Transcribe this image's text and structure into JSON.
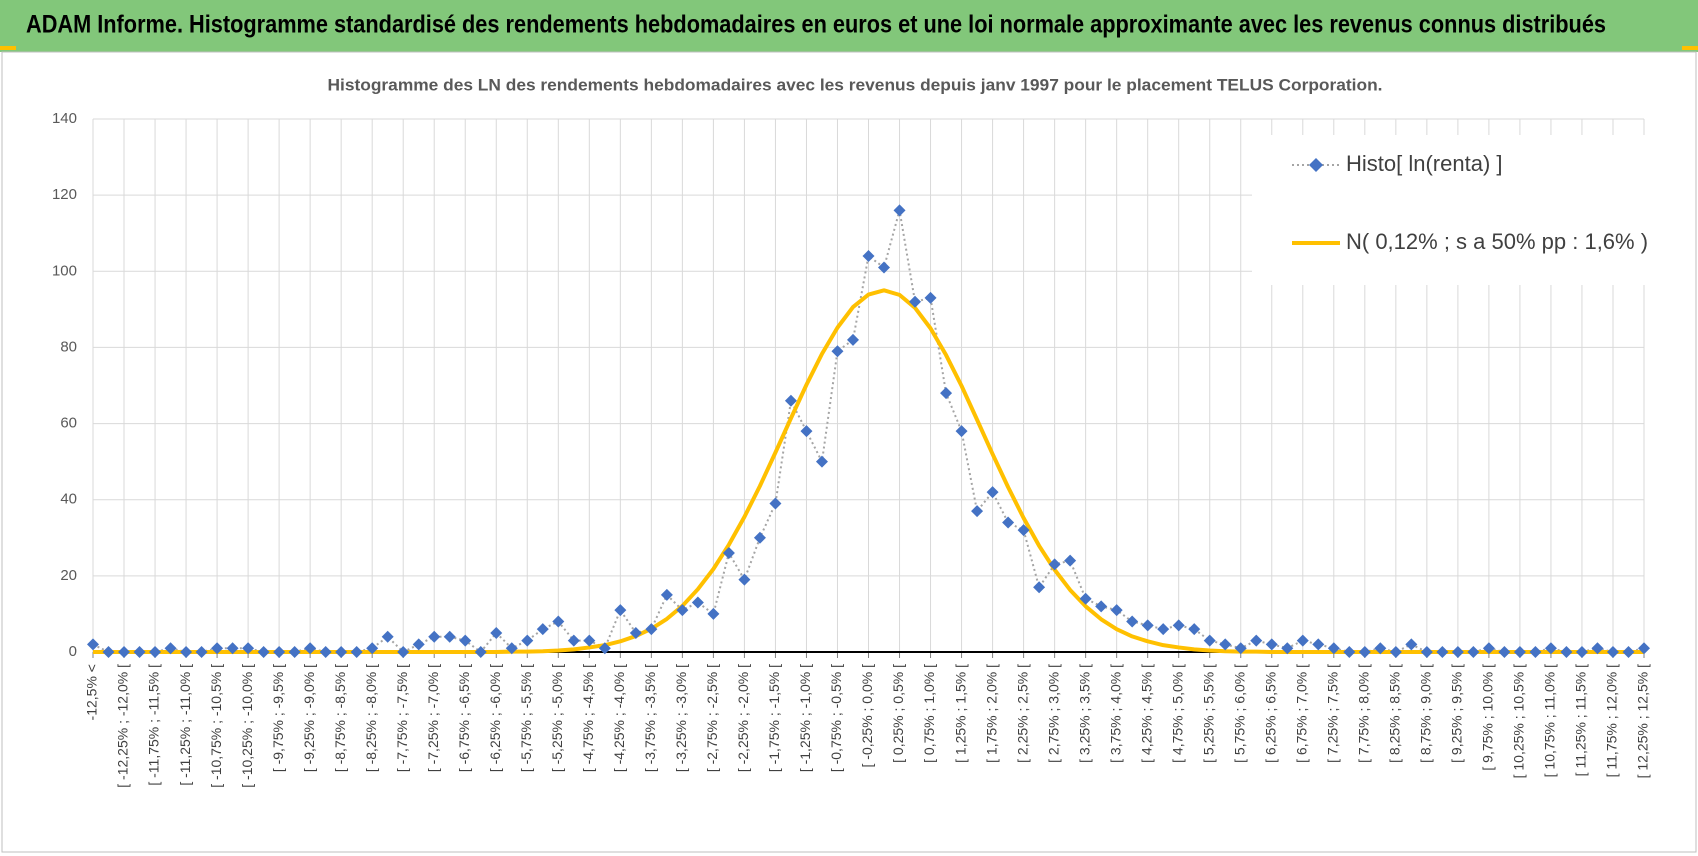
{
  "header": {
    "title": "ADAM Informe. Histogramme standardisé des rendements hebdomadaires en euros et une loi normale approximante avec les revenus connus distribués"
  },
  "chart_data": {
    "type": "line",
    "title": "Histogramme des LN des rendements hebdomadaires avec les revenus depuis janv 1997 pour le placement TELUS Corporation.",
    "categories": [
      "-12,5% <",
      null,
      "[ -12,25% ; -12,0% [",
      null,
      "[ -11,75% ; -11,5% [",
      null,
      "[ -11,25% ; -11,0% [",
      null,
      "[ -10,75% ; -10,5% [",
      null,
      "[ -10,25% ; -10,0% [",
      null,
      "[ -9,75% ; -9,5% [",
      null,
      "[ -9,25% ; -9,0% [",
      null,
      "[ -8,75% ; -8,5% [",
      null,
      "[ -8,25% ; -8,0% [",
      null,
      "[ -7,75% ; -7,5% [",
      null,
      "[ -7,25% ; -7,0% [",
      null,
      "[ -6,75% ; -6,5% [",
      null,
      "[ -6,25% ; -6,0% [",
      null,
      "[ -5,75% ; -5,5% [",
      null,
      "[ -5,25% ; -5,0% [",
      null,
      "[ -4,75% ; -4,5% [",
      null,
      "[ -4,25% ; -4,0% [",
      null,
      "[ -3,75% ; -3,5% [",
      null,
      "[ -3,25% ; -3,0% [",
      null,
      "[ -2,75% ; -2,5% [",
      null,
      "[ -2,25% ; -2,0% [",
      null,
      "[ -1,75% ; -1,5% [",
      null,
      "[ -1,25% ; -1,0% [",
      null,
      "[ -0,75% ; -0,5% [",
      null,
      "[ -0,25% ; 0,0% [",
      null,
      "[ 0,25% ; 0,5% [",
      null,
      "[ 0,75% ; 1,0% [",
      null,
      "[ 1,25% ; 1,5% [",
      null,
      "[ 1,75% ; 2,0% [",
      null,
      "[ 2,25% ; 2,5% [",
      null,
      "[ 2,75% ; 3,0% [",
      null,
      "[ 3,25% ; 3,5% [",
      null,
      "[ 3,75% ; 4,0% [",
      null,
      "[ 4,25% ; 4,5% [",
      null,
      "[ 4,75% ; 5,0% [",
      null,
      "[ 5,25% ; 5,5% [",
      null,
      "[ 5,75% ; 6,0% [",
      null,
      "[ 6,25% ; 6,5% [",
      null,
      "[ 6,75% ; 7,0% [",
      null,
      "[ 7,25% ; 7,5% [",
      null,
      "[ 7,75% ; 8,0% [",
      null,
      "[ 8,25% ; 8,5% [",
      null,
      "[ 8,75% ; 9,0% [",
      null,
      "[ 9,25% ; 9,5% [",
      null,
      "[ 9,75% ; 10,0% [",
      null,
      "[ 10,25% ; 10,5% [",
      null,
      "[ 10,75% ; 11,0% [",
      null,
      "[ 11,25% ; 11,5% [",
      null,
      "[ 11,75% ; 12,0% [",
      null,
      "[ 12,25% ; 12,5% ["
    ],
    "series": [
      {
        "name": "Histo[ ln(renta) ]",
        "color": "#4472C4",
        "line_color": "#A5A5A5",
        "line_style": "dotted",
        "marker": "diamond",
        "values": [
          2,
          0,
          0,
          0,
          0,
          1,
          0,
          0,
          1,
          1,
          1,
          0,
          0,
          0,
          1,
          0,
          0,
          0,
          1,
          4,
          0,
          2,
          4,
          4,
          3,
          0,
          5,
          1,
          3,
          6,
          8,
          3,
          3,
          1,
          11,
          5,
          6,
          15,
          11,
          13,
          10,
          26,
          19,
          30,
          39,
          66,
          58,
          50,
          79,
          82,
          104,
          101,
          116,
          92,
          93,
          68,
          58,
          37,
          42,
          34,
          32,
          17,
          23,
          24,
          14,
          12,
          11,
          8,
          7,
          6,
          7,
          6,
          3,
          2,
          1,
          3,
          2,
          1,
          3,
          2,
          1,
          0,
          0,
          1,
          0,
          2,
          0,
          0,
          0,
          0,
          1,
          0,
          0,
          0,
          1,
          0,
          0,
          1,
          0,
          0,
          1
        ]
      },
      {
        "name": "N( 0,12% ; s a 50% pp : 1,6% )",
        "color": "#FFC000",
        "line_style": "solid",
        "marker": "none",
        "values": [
          0,
          0,
          0,
          0,
          0,
          0,
          0,
          0,
          0,
          0,
          0,
          0,
          0,
          0,
          0,
          0,
          0,
          0,
          0,
          0,
          0,
          0,
          0,
          0,
          0,
          0,
          0,
          0.1,
          0.1,
          0.2,
          0.4,
          0.7,
          1.2,
          1.8,
          2.8,
          4.2,
          6.1,
          8.7,
          12.1,
          16.5,
          21.8,
          28.2,
          35.5,
          43.6,
          52.4,
          61.4,
          70.2,
          78.3,
          85.2,
          90.6,
          93.9,
          95.0,
          93.8,
          90.4,
          85.0,
          78.0,
          69.9,
          61.0,
          52.0,
          43.3,
          35.2,
          27.9,
          21.6,
          16.3,
          12.0,
          8.6,
          6.0,
          4.1,
          2.8,
          1.8,
          1.2,
          0.7,
          0.4,
          0.2,
          0.1,
          0.1,
          0,
          0,
          0,
          0,
          0,
          0,
          0,
          0,
          0,
          0,
          0,
          0,
          0,
          0,
          0,
          0,
          0,
          0,
          0,
          0,
          0,
          0,
          0,
          0,
          0
        ]
      }
    ],
    "ylim": [
      0,
      140
    ],
    "yticks": [
      0,
      20,
      40,
      60,
      80,
      100,
      120,
      140
    ],
    "grid": true,
    "legend": "upper right"
  }
}
